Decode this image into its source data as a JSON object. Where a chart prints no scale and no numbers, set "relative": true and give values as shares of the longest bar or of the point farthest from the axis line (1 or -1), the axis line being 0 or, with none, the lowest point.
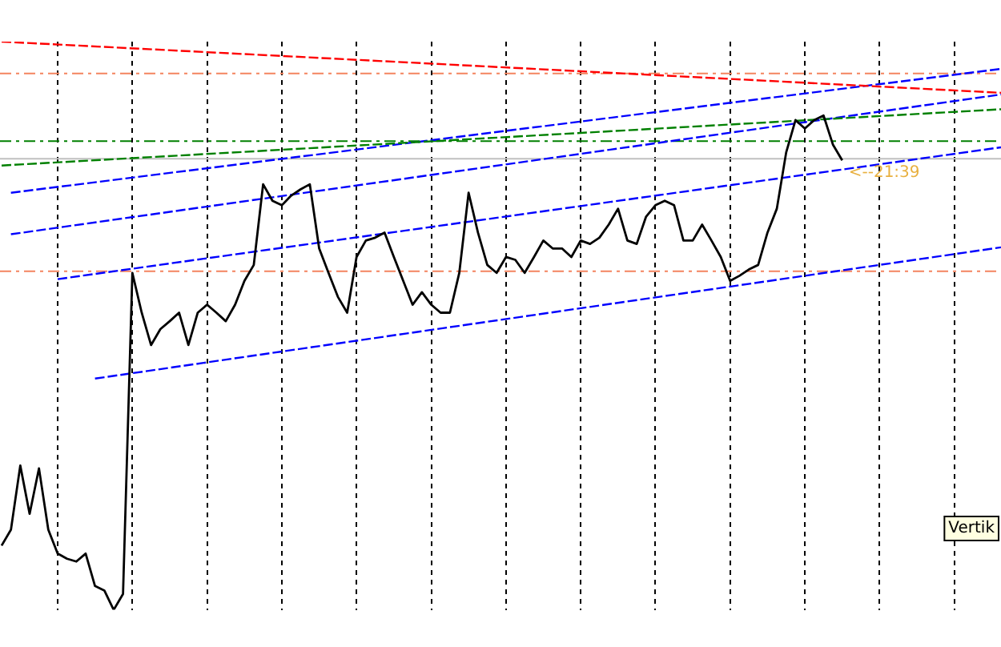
{
  "chart_data": {
    "type": "line",
    "relative": true,
    "legend": false,
    "grid": "x",
    "marker": "none",
    "categories": [
      null,
      null,
      null,
      null,
      null,
      null,
      null,
      null,
      null,
      null,
      null,
      null,
      null,
      null,
      null,
      null,
      null,
      null,
      null,
      null,
      null,
      null,
      null,
      null,
      null,
      null,
      null,
      null,
      null,
      null,
      null,
      null,
      null,
      null,
      null,
      null,
      null,
      null,
      null,
      null,
      null,
      null,
      null,
      null,
      null,
      null,
      null,
      null,
      null,
      null,
      null,
      null,
      null,
      null,
      null,
      null,
      null,
      null,
      null,
      null,
      null,
      null,
      null,
      null,
      null,
      null,
      null,
      null,
      null,
      null,
      null,
      null,
      null,
      null,
      null,
      null,
      null,
      null,
      null,
      null,
      null,
      null,
      null,
      null,
      null,
      null,
      null,
      null,
      null,
      null,
      null,
      null,
      null,
      null,
      null,
      null,
      null,
      null,
      null,
      null,
      null,
      null,
      null,
      null,
      null,
      null,
      null,
      null
    ],
    "series": [
      {
        "color": "#000000",
        "line_style": "solid",
        "values": [
          0.113,
          0.141,
          0.254,
          0.169,
          0.249,
          0.141,
          0.099,
          0.09,
          0.085,
          0.099,
          0.042,
          0.034,
          0,
          0.028,
          0.593,
          0.523,
          0.466,
          0.494,
          0.508,
          0.523,
          0.466,
          0.523,
          0.537,
          0.523,
          0.508,
          0.537,
          0.579,
          0.607,
          0.749,
          0.72,
          0.712,
          0.729,
          0.74,
          0.749,
          0.636,
          0.593,
          0.551,
          0.523,
          0.621,
          0.65,
          0.655,
          0.664,
          0.621,
          0.579,
          0.537,
          0.559,
          0.537,
          0.523,
          0.523,
          0.593,
          0.734,
          0.664,
          0.607,
          0.593,
          0.621,
          0.616,
          0.593,
          0.621,
          0.65,
          0.636,
          0.636,
          0.621,
          0.65,
          0.644,
          0.655,
          0.678,
          0.706,
          0.65,
          0.644,
          0.692,
          0.712,
          0.72,
          0.712,
          0.65,
          0.65,
          0.678,
          0.65,
          0.621,
          0.579,
          0.588,
          0.599,
          0.607,
          0.664,
          0.706,
          0.805,
          0.862,
          0.847,
          0.862,
          0.87,
          0.819,
          0.791,
          null,
          null,
          null,
          null,
          null,
          null,
          null,
          null,
          null,
          null,
          null,
          null,
          null,
          null,
          null,
          null,
          null
        ]
      },
      {
        "color": "#ff0000",
        "line_style": "dashed",
        "values": [
          1,
          null,
          null,
          null,
          null,
          null,
          null,
          null,
          null,
          null,
          null,
          null,
          null,
          null,
          null,
          null,
          null,
          null,
          null,
          null,
          null,
          null,
          null,
          null,
          null,
          null,
          null,
          null,
          null,
          null,
          null,
          null,
          null,
          null,
          null,
          null,
          null,
          null,
          null,
          null,
          null,
          null,
          null,
          null,
          null,
          null,
          null,
          null,
          null,
          null,
          null,
          null,
          null,
          null,
          null,
          null,
          null,
          null,
          null,
          null,
          null,
          null,
          null,
          null,
          null,
          null,
          null,
          null,
          null,
          null,
          null,
          null,
          null,
          null,
          null,
          null,
          null,
          null,
          null,
          null,
          null,
          null,
          null,
          null,
          null,
          null,
          null,
          null,
          null,
          null,
          null,
          null,
          null,
          null,
          null,
          null,
          null,
          null,
          null,
          null,
          null,
          null,
          null,
          null,
          null,
          null,
          null,
          0.91
        ]
      },
      {
        "color": "#008000",
        "line_style": "dashed",
        "values": [
          0.782,
          null,
          null,
          null,
          null,
          null,
          null,
          null,
          null,
          null,
          null,
          null,
          null,
          null,
          null,
          null,
          null,
          null,
          null,
          null,
          null,
          null,
          null,
          null,
          null,
          null,
          null,
          null,
          null,
          null,
          null,
          null,
          null,
          null,
          null,
          null,
          null,
          null,
          null,
          null,
          null,
          null,
          null,
          null,
          null,
          null,
          null,
          null,
          null,
          null,
          null,
          null,
          null,
          null,
          null,
          null,
          null,
          null,
          null,
          null,
          null,
          null,
          null,
          null,
          null,
          null,
          null,
          null,
          null,
          null,
          null,
          null,
          null,
          null,
          null,
          null,
          null,
          null,
          null,
          null,
          null,
          null,
          null,
          null,
          null,
          null,
          null,
          null,
          null,
          null,
          null,
          null,
          null,
          null,
          null,
          null,
          null,
          null,
          null,
          null,
          null,
          null,
          null,
          null,
          null,
          null,
          null,
          0.881
        ]
      },
      {
        "color": "#0000ff",
        "line_style": "dashed",
        "values": [
          null,
          0.734,
          null,
          null,
          null,
          null,
          null,
          null,
          null,
          null,
          null,
          null,
          null,
          null,
          null,
          null,
          null,
          null,
          null,
          null,
          null,
          null,
          null,
          null,
          null,
          null,
          null,
          null,
          null,
          null,
          null,
          null,
          null,
          null,
          null,
          null,
          null,
          null,
          null,
          null,
          null,
          null,
          null,
          null,
          null,
          null,
          null,
          null,
          null,
          null,
          null,
          null,
          null,
          null,
          null,
          null,
          null,
          null,
          null,
          null,
          null,
          null,
          null,
          null,
          null,
          null,
          null,
          null,
          null,
          null,
          null,
          null,
          null,
          null,
          null,
          null,
          null,
          null,
          null,
          null,
          null,
          null,
          null,
          null,
          null,
          null,
          null,
          null,
          null,
          null,
          null,
          null,
          null,
          null,
          null,
          null,
          null,
          null,
          null,
          null,
          null,
          null,
          null,
          null,
          null,
          null,
          null,
          0.952
        ]
      },
      {
        "color": "#0000ff",
        "line_style": "dashed",
        "values": [
          null,
          0.661,
          null,
          null,
          null,
          null,
          null,
          null,
          null,
          null,
          null,
          null,
          null,
          null,
          null,
          null,
          null,
          null,
          null,
          null,
          null,
          null,
          null,
          null,
          null,
          null,
          null,
          null,
          null,
          null,
          null,
          null,
          null,
          null,
          null,
          null,
          null,
          null,
          null,
          null,
          null,
          null,
          null,
          null,
          null,
          null,
          null,
          null,
          null,
          null,
          null,
          null,
          null,
          null,
          null,
          null,
          null,
          null,
          null,
          null,
          null,
          null,
          null,
          null,
          null,
          null,
          null,
          null,
          null,
          null,
          null,
          null,
          null,
          null,
          null,
          null,
          null,
          null,
          null,
          null,
          null,
          null,
          null,
          null,
          null,
          null,
          null,
          null,
          null,
          null,
          null,
          null,
          null,
          null,
          null,
          null,
          null,
          null,
          null,
          null,
          null,
          null,
          null,
          null,
          null,
          null,
          null,
          0.907
        ]
      },
      {
        "color": "#0000ff",
        "line_style": "dashed",
        "values": [
          null,
          null,
          null,
          null,
          null,
          null,
          0.582,
          null,
          null,
          null,
          null,
          null,
          null,
          null,
          null,
          null,
          null,
          null,
          null,
          null,
          null,
          null,
          null,
          null,
          null,
          null,
          null,
          null,
          null,
          null,
          null,
          null,
          null,
          null,
          null,
          null,
          null,
          null,
          null,
          null,
          null,
          null,
          null,
          null,
          null,
          null,
          null,
          null,
          null,
          null,
          null,
          null,
          null,
          null,
          null,
          null,
          null,
          null,
          null,
          null,
          null,
          null,
          null,
          null,
          null,
          null,
          null,
          null,
          null,
          null,
          null,
          null,
          null,
          null,
          null,
          null,
          null,
          null,
          null,
          null,
          null,
          null,
          null,
          null,
          null,
          null,
          null,
          null,
          null,
          null,
          null,
          null,
          null,
          null,
          null,
          null,
          null,
          null,
          null,
          null,
          null,
          null,
          null,
          null,
          null,
          null,
          null,
          0.814
        ]
      },
      {
        "color": "#0000ff",
        "line_style": "dashed",
        "values": [
          null,
          null,
          null,
          null,
          null,
          null,
          null,
          null,
          null,
          null,
          0.407,
          null,
          null,
          null,
          null,
          null,
          null,
          null,
          null,
          null,
          null,
          null,
          null,
          null,
          null,
          null,
          null,
          null,
          null,
          null,
          null,
          null,
          null,
          null,
          null,
          null,
          null,
          null,
          null,
          null,
          null,
          null,
          null,
          null,
          null,
          null,
          null,
          null,
          null,
          null,
          null,
          null,
          null,
          null,
          null,
          null,
          null,
          null,
          null,
          null,
          null,
          null,
          null,
          null,
          null,
          null,
          null,
          null,
          null,
          null,
          null,
          null,
          null,
          null,
          null,
          null,
          null,
          null,
          null,
          null,
          null,
          null,
          null,
          null,
          null,
          null,
          null,
          null,
          null,
          null,
          null,
          null,
          null,
          null,
          null,
          null,
          null,
          null,
          null,
          null,
          null,
          null,
          null,
          null,
          null,
          null,
          null,
          0.638
        ]
      }
    ],
    "ref_lines": [
      {
        "axis": "y",
        "value": 0.944,
        "color": "#f4845f",
        "line_style": "dashed"
      },
      {
        "axis": "y",
        "value": 0.825,
        "color": "#008000",
        "line_style": "dashed"
      },
      {
        "axis": "y",
        "value": 0.794,
        "color": "#c0c0c0",
        "line_style": "solid"
      },
      {
        "axis": "y",
        "value": 0.596,
        "color": "#f4845f",
        "line_style": "dashed"
      }
    ],
    "annotations": [
      {
        "text": "<--21:39",
        "y": 0.791
      },
      "Vertik"
    ]
  }
}
